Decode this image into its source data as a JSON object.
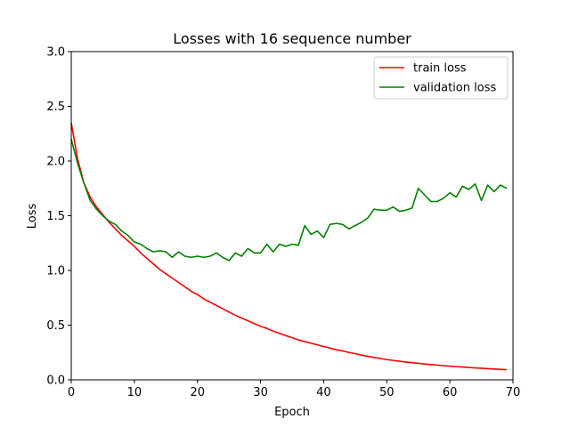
{
  "chart_data": {
    "type": "line",
    "title": "Losses with 16 sequence number",
    "xlabel": "Epoch",
    "ylabel": "Loss",
    "xlim": [
      0,
      70
    ],
    "ylim": [
      0.0,
      3.0
    ],
    "xticks": [
      "0",
      "10",
      "20",
      "30",
      "40",
      "50",
      "60",
      "70"
    ],
    "yticks": [
      "0.0",
      "0.5",
      "1.0",
      "1.5",
      "2.0",
      "2.5",
      "3.0"
    ],
    "grid": false,
    "legend_position": "top-right",
    "series": [
      {
        "name": "train loss",
        "color": "#ff0000",
        "x": [
          0,
          1,
          2,
          3,
          4,
          5,
          6,
          7,
          8,
          9,
          10,
          11,
          12,
          13,
          14,
          15,
          16,
          17,
          18,
          19,
          20,
          21,
          22,
          23,
          24,
          25,
          26,
          27,
          28,
          29,
          30,
          31,
          32,
          33,
          34,
          35,
          36,
          37,
          38,
          39,
          40,
          41,
          42,
          43,
          44,
          45,
          46,
          47,
          48,
          49,
          50,
          51,
          52,
          53,
          54,
          55,
          56,
          57,
          58,
          59,
          60,
          61,
          62,
          63,
          64,
          65,
          66,
          67,
          68,
          69
        ],
        "values": [
          2.35,
          2.02,
          1.8,
          1.67,
          1.58,
          1.51,
          1.44,
          1.38,
          1.32,
          1.27,
          1.22,
          1.16,
          1.11,
          1.06,
          1.01,
          0.97,
          0.93,
          0.89,
          0.85,
          0.81,
          0.78,
          0.74,
          0.71,
          0.68,
          0.65,
          0.62,
          0.59,
          0.565,
          0.54,
          0.515,
          0.49,
          0.47,
          0.445,
          0.425,
          0.405,
          0.385,
          0.365,
          0.35,
          0.335,
          0.32,
          0.305,
          0.29,
          0.275,
          0.265,
          0.25,
          0.24,
          0.225,
          0.215,
          0.205,
          0.195,
          0.185,
          0.178,
          0.17,
          0.163,
          0.157,
          0.151,
          0.145,
          0.14,
          0.135,
          0.13,
          0.125,
          0.121,
          0.117,
          0.113,
          0.109,
          0.106,
          0.102,
          0.099,
          0.096,
          0.093
        ]
      },
      {
        "name": "validation loss",
        "color": "#008000",
        "x": [
          0,
          1,
          2,
          3,
          4,
          5,
          6,
          7,
          8,
          9,
          10,
          11,
          12,
          13,
          14,
          15,
          16,
          17,
          18,
          19,
          20,
          21,
          22,
          23,
          24,
          25,
          26,
          27,
          28,
          29,
          30,
          31,
          32,
          33,
          34,
          35,
          36,
          37,
          38,
          39,
          40,
          41,
          42,
          43,
          44,
          45,
          46,
          47,
          48,
          49,
          50,
          51,
          52,
          53,
          54,
          55,
          56,
          57,
          58,
          59,
          60,
          61,
          62,
          63,
          64,
          65,
          66,
          67,
          68,
          69
        ],
        "values": [
          2.2,
          1.98,
          1.8,
          1.64,
          1.56,
          1.5,
          1.45,
          1.42,
          1.36,
          1.32,
          1.26,
          1.24,
          1.2,
          1.17,
          1.18,
          1.17,
          1.12,
          1.17,
          1.13,
          1.12,
          1.13,
          1.12,
          1.13,
          1.16,
          1.12,
          1.09,
          1.16,
          1.13,
          1.2,
          1.16,
          1.16,
          1.24,
          1.17,
          1.24,
          1.22,
          1.24,
          1.23,
          1.41,
          1.33,
          1.36,
          1.3,
          1.42,
          1.43,
          1.42,
          1.38,
          1.41,
          1.44,
          1.48,
          1.56,
          1.55,
          1.55,
          1.58,
          1.54,
          1.55,
          1.57,
          1.75,
          1.69,
          1.63,
          1.63,
          1.66,
          1.71,
          1.67,
          1.77,
          1.74,
          1.79,
          1.64,
          1.78,
          1.72,
          1.78,
          1.75
        ]
      }
    ]
  }
}
